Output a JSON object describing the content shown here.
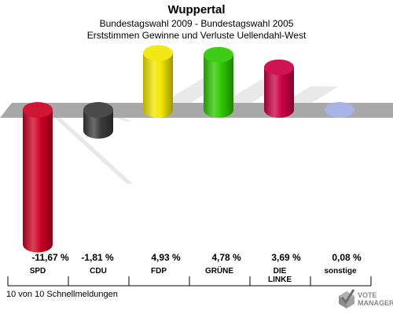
{
  "header": {
    "title": "Wuppertal",
    "subtitle_1": "Bundestagswahl 2009 - Bundestagswahl 2005",
    "subtitle_2": "Erststimmen Gewinne und Verluste Uellendahl-West"
  },
  "chart_data": {
    "type": "bar",
    "title": "Wuppertal",
    "categories": [
      "SPD",
      "CDU",
      "FDP",
      "GRÜNE",
      "DIE LINKE",
      "sonstige"
    ],
    "values": [
      -11.67,
      -1.81,
      4.93,
      4.78,
      3.69,
      0.08
    ],
    "value_labels": [
      "-11,67 %",
      "-1,81 %",
      "4,93 %",
      "4,78 %",
      "3,69 %",
      "0,08 %"
    ],
    "colors": [
      "#cc0022",
      "#3a3a3a",
      "#f2e600",
      "#2ec800",
      "#cc0044",
      "#a8b4e6"
    ],
    "ylim": [
      -12.5,
      6
    ],
    "grid": false,
    "legend": "none"
  },
  "category_labels": {
    "spd": "SPD",
    "cdu": "CDU",
    "fdp": "FDP",
    "gruene": "GRÜNE",
    "linke_1": "DIE",
    "linke_2": "LINKE",
    "sonstige": "sonstige"
  },
  "footer": {
    "status": "10 von 10 Schnellmeldungen"
  },
  "logo": {
    "line_1": "VOTE",
    "line_2": "MANAGER"
  }
}
